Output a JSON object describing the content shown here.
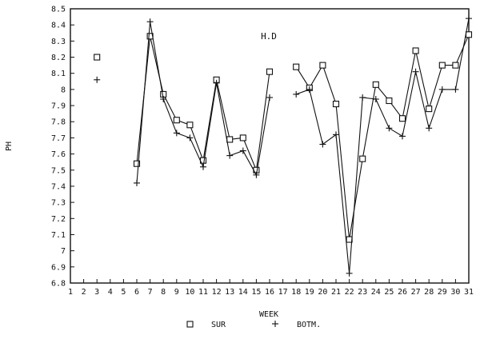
{
  "chart_data": {
    "type": "line",
    "title": "",
    "annotation": "H.D",
    "xlabel": "WEEK",
    "ylabel": "PH",
    "xlim": [
      1,
      31
    ],
    "ylim": [
      6.8,
      8.5
    ],
    "x_ticks": [
      "1",
      "2",
      "3",
      "4",
      "5",
      "6",
      "7",
      "8",
      "9",
      "10",
      "11",
      "12",
      "13",
      "14",
      "15",
      "16",
      "17",
      "18",
      "19",
      "20",
      "21",
      "22",
      "23",
      "24",
      "25",
      "26",
      "27",
      "28",
      "29",
      "30",
      "31"
    ],
    "y_ticks": [
      "6.8",
      "6.9",
      "7",
      "7.1",
      "7.2",
      "7.3",
      "7.4",
      "7.5",
      "7.6",
      "7.7",
      "7.8",
      "7.9",
      "8",
      "8.1",
      "8.2",
      "8.3",
      "8.4",
      "8.5"
    ],
    "grid": false,
    "legend_position": "bottom-center",
    "series": [
      {
        "name": "SUR",
        "marker": "square",
        "color": "#111111",
        "points": [
          [
            3,
            8.2
          ],
          [
            6,
            7.54
          ],
          [
            7,
            8.33
          ],
          [
            8,
            7.97
          ],
          [
            9,
            7.81
          ],
          [
            10,
            7.78
          ],
          [
            11,
            7.56
          ],
          [
            12,
            8.06
          ],
          [
            13,
            7.69
          ],
          [
            14,
            7.7
          ],
          [
            15,
            7.5
          ],
          [
            16,
            8.11
          ],
          [
            18,
            8.14
          ],
          [
            19,
            8.01
          ],
          [
            20,
            8.15
          ],
          [
            21,
            7.91
          ],
          [
            22,
            7.07
          ],
          [
            23,
            7.57
          ],
          [
            24,
            8.03
          ],
          [
            25,
            7.93
          ],
          [
            26,
            7.82
          ],
          [
            27,
            8.24
          ],
          [
            28,
            7.88
          ],
          [
            29,
            8.15
          ],
          [
            30,
            8.15
          ],
          [
            31,
            8.34
          ]
        ],
        "segments": [
          [
            6,
            16
          ],
          [
            18,
            31
          ]
        ]
      },
      {
        "name": "BOTM.",
        "marker": "plus",
        "color": "#111111",
        "points": [
          [
            3,
            8.06
          ],
          [
            6,
            7.42
          ],
          [
            7,
            8.42
          ],
          [
            8,
            7.94
          ],
          [
            9,
            7.73
          ],
          [
            10,
            7.7
          ],
          [
            11,
            7.52
          ],
          [
            12,
            8.04
          ],
          [
            13,
            7.59
          ],
          [
            14,
            7.62
          ],
          [
            15,
            7.47
          ],
          [
            16,
            7.95
          ],
          [
            18,
            7.97
          ],
          [
            19,
            8.0
          ],
          [
            20,
            7.66
          ],
          [
            21,
            7.72
          ],
          [
            22,
            6.86
          ],
          [
            23,
            7.95
          ],
          [
            24,
            7.94
          ],
          [
            25,
            7.76
          ],
          [
            26,
            7.71
          ],
          [
            27,
            8.11
          ],
          [
            28,
            7.76
          ],
          [
            29,
            8.0
          ],
          [
            30,
            8.0
          ],
          [
            31,
            8.44
          ]
        ],
        "segments": [
          [
            6,
            16
          ],
          [
            18,
            31
          ]
        ]
      }
    ]
  }
}
